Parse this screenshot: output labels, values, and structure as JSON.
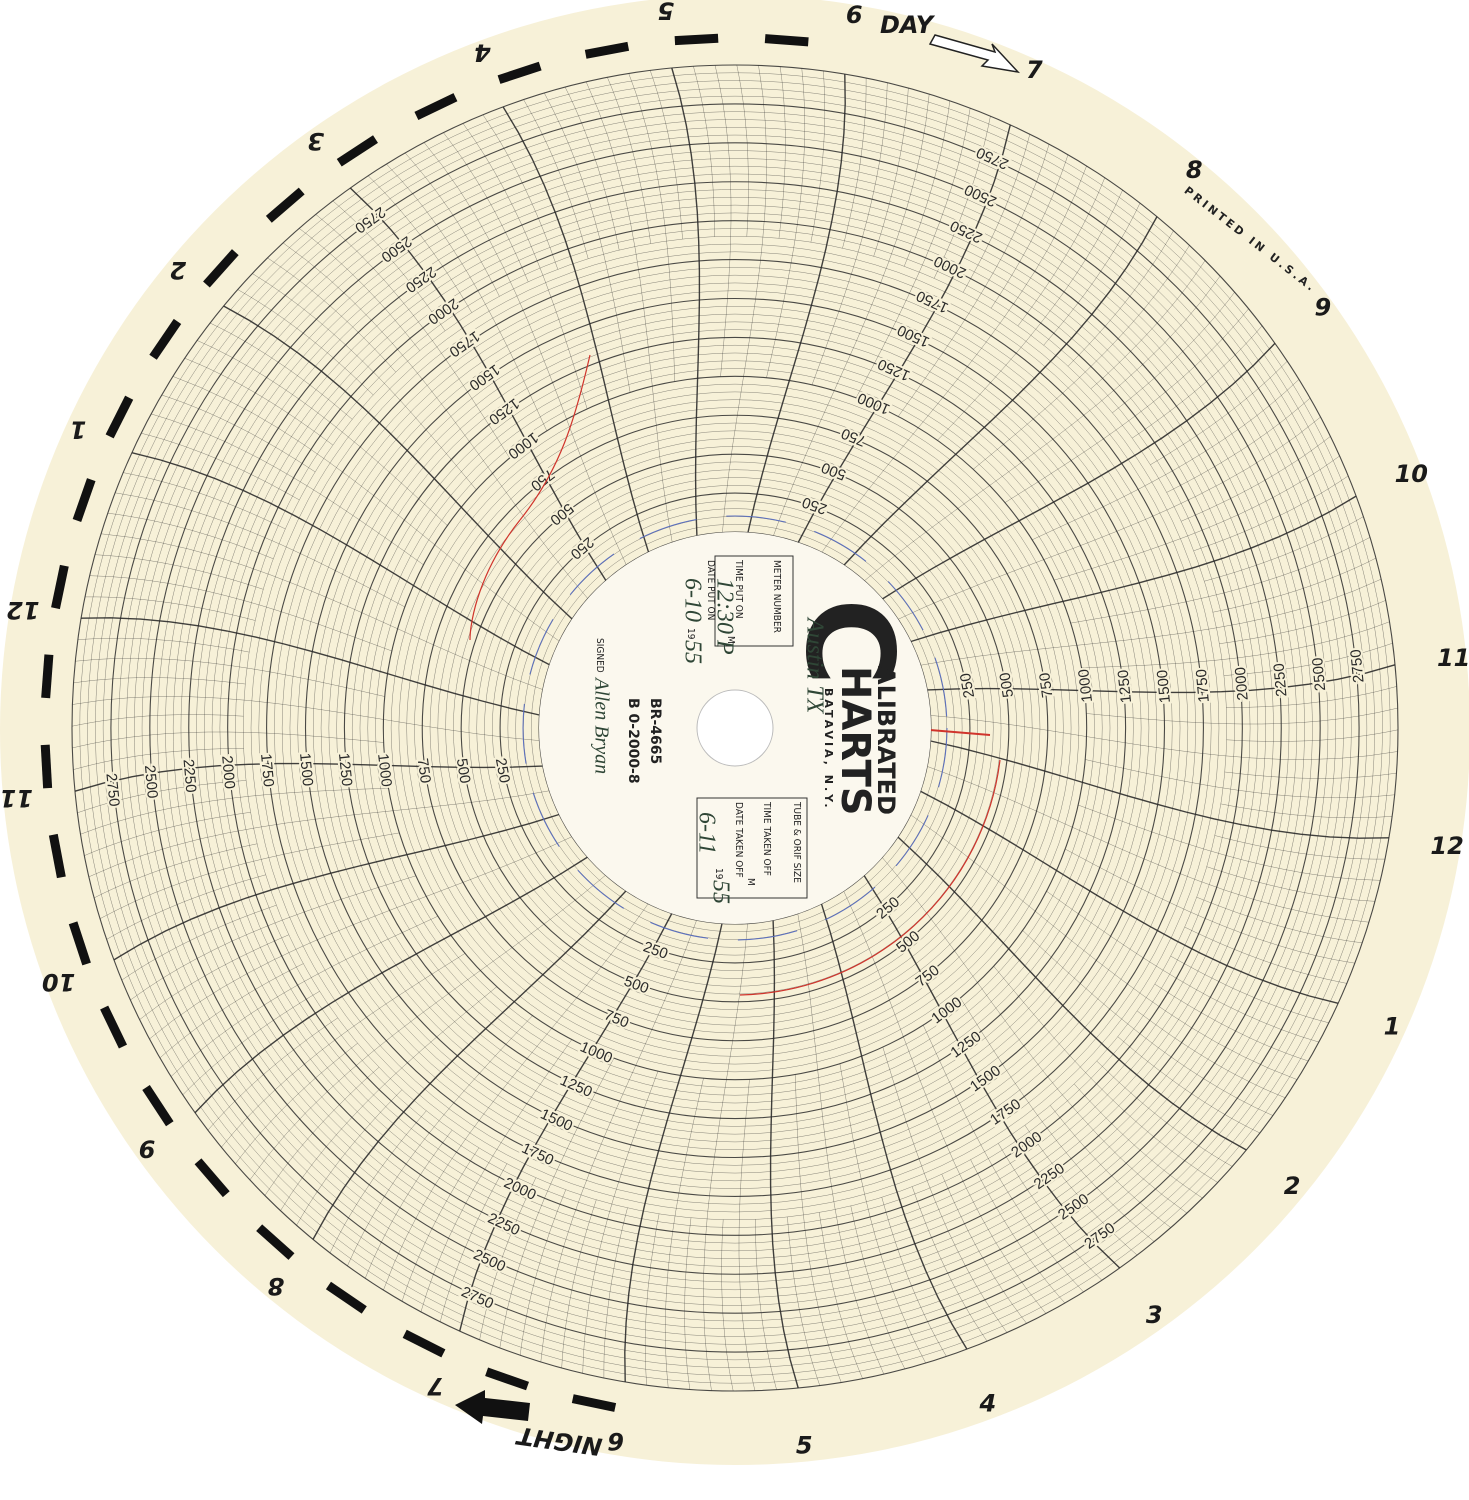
{
  "hour_labels": [
    12,
    1,
    2,
    3,
    4,
    5,
    6,
    7,
    8,
    9,
    10,
    11,
    12,
    1,
    2,
    3,
    4,
    5,
    6,
    7,
    8,
    9,
    10,
    11
  ],
  "day_label": "DAY",
  "night_label": "NIGHT",
  "scale_labels": [
    250,
    500,
    750,
    1000,
    1250,
    1500,
    1750,
    2000,
    2250,
    2500,
    2750
  ],
  "imprint": "PRINTED IN U.S.A.",
  "center": {
    "brand": {
      "initial": "C",
      "line1": "ALIBRATED",
      "line2": "HARTS",
      "city": "BATAVIA, N.Y."
    },
    "meter_number_label": "METER NUMBER",
    "meter_number": "Austin TX",
    "time_put_on_label": "TIME PUT ON",
    "time_put_on": "12:30 P",
    "date_put_on_label": "DATE PUT ON",
    "date_put_on": "6-10",
    "put_on_m": "M",
    "put_on_year_prefix": "19",
    "put_on_year": "55",
    "tube_size_label": "TUBE & ORIF SIZE",
    "time_taken_off_label": "TIME TAKEN OFF",
    "taken_off_m": "M",
    "date_taken_off_label": "DATE TAKEN OFF",
    "date_taken_off": "6-11",
    "taken_off_year_prefix": "19",
    "taken_off_year": "55",
    "chart_number": "BR-4665",
    "range_code": "B 0-2000-8",
    "signed_label": "SIGNED",
    "signature": "Allen Bryan"
  }
}
